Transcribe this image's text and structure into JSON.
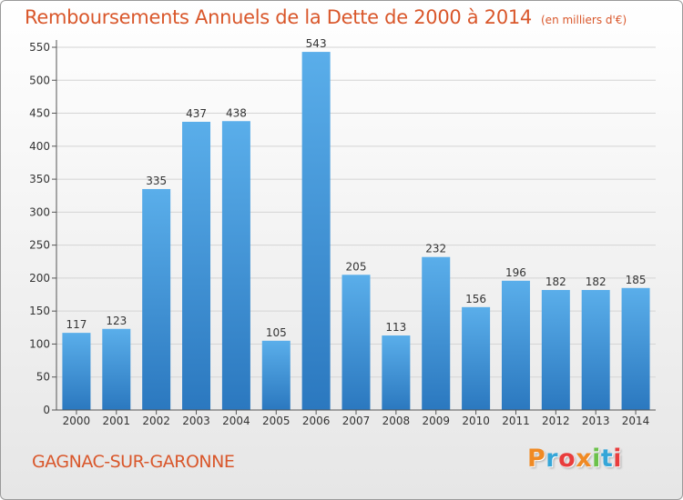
{
  "header": {
    "title": "Remboursements Annuels de la Dette de 2000 à 2014",
    "subtitle": "(en milliers d'€)"
  },
  "footer": {
    "town": "GAGNAC-SUR-GARONNE",
    "logo_letters": [
      "P",
      "r",
      "o",
      "x",
      "i",
      "t",
      "i"
    ]
  },
  "colors": {
    "title": "#d9572b",
    "bar_top": "#5aaeea",
    "bar_bottom": "#2b78bf",
    "grid": "#d4d4d4",
    "axis": "#555555",
    "logo": [
      "#f08a24",
      "#35a6d8",
      "#e93d3d",
      "#f08a24",
      "#6cc24a",
      "#35a6d8",
      "#e93d3d"
    ]
  },
  "chart_data": {
    "type": "bar",
    "title": "Remboursements Annuels de la Dette de 2000 à 2014",
    "subtitle": "(en milliers d'€)",
    "xlabel": "",
    "ylabel": "",
    "ylim": [
      0,
      550
    ],
    "yticks": [
      0,
      50,
      100,
      150,
      200,
      250,
      300,
      350,
      400,
      450,
      500,
      550
    ],
    "grid": true,
    "categories": [
      "2000",
      "2001",
      "2002",
      "2003",
      "2004",
      "2005",
      "2006",
      "2007",
      "2008",
      "2009",
      "2010",
      "2011",
      "2012",
      "2013",
      "2014"
    ],
    "values": [
      117,
      123,
      335,
      437,
      438,
      105,
      543,
      205,
      113,
      232,
      156,
      196,
      182,
      182,
      185
    ]
  }
}
